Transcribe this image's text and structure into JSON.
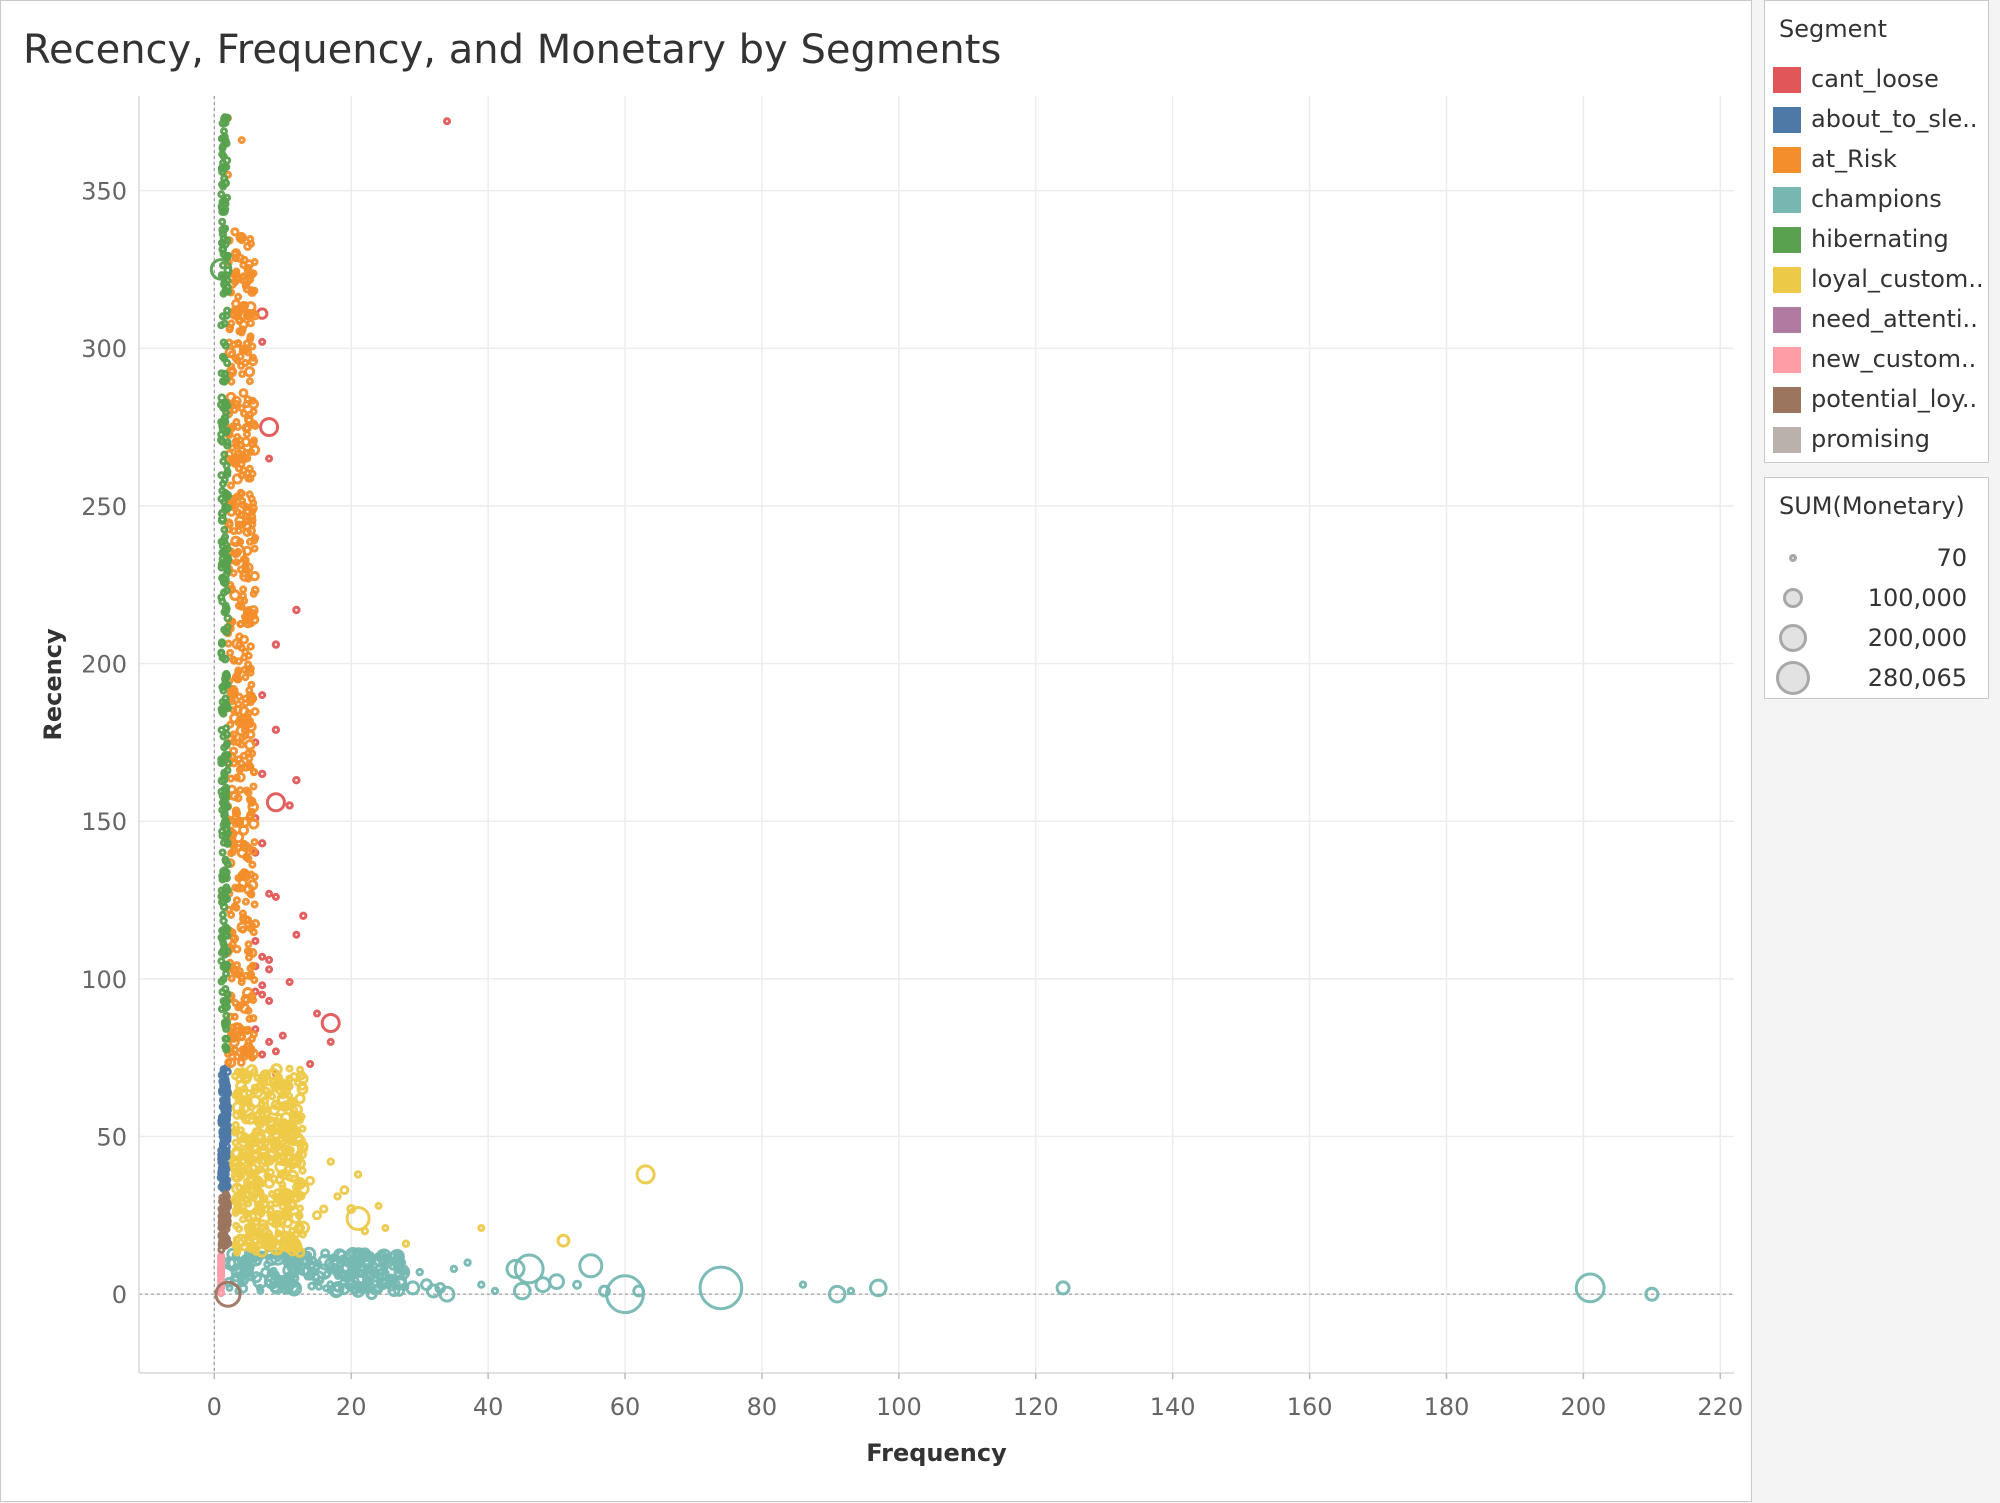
{
  "colors": {
    "cant_loose": "#e15759",
    "about_to_sleep": "#4e79a7",
    "at_Risk": "#f28e2b",
    "champions": "#76b7b2",
    "hibernating": "#59a14f",
    "loyal_customers": "#edc948",
    "need_attention": "#b07aa1",
    "new_customers": "#ff9da7",
    "potential_loyalists": "#9c755f",
    "promising": "#bab0ac"
  },
  "legend": {
    "segment_title": "Segment",
    "segments": [
      {
        "label": "cant_loose",
        "key": "cant_loose"
      },
      {
        "label": "about_to_sle..",
        "key": "about_to_sleep"
      },
      {
        "label": "at_Risk",
        "key": "at_Risk"
      },
      {
        "label": "champions",
        "key": "champions"
      },
      {
        "label": "hibernating",
        "key": "hibernating"
      },
      {
        "label": "loyal_custom..",
        "key": "loyal_customers"
      },
      {
        "label": "need_attenti..",
        "key": "need_attention"
      },
      {
        "label": "new_custom..",
        "key": "new_customers"
      },
      {
        "label": "potential_loy..",
        "key": "potential_loyalists"
      },
      {
        "label": "promising",
        "key": "promising"
      }
    ],
    "size_title": "SUM(Monetary)",
    "sizes": [
      {
        "label": "70",
        "value": 70
      },
      {
        "label": "100,000",
        "value": 100000
      },
      {
        "label": "200,000",
        "value": 200000
      },
      {
        "label": "280,065",
        "value": 280065
      }
    ]
  },
  "chart_data": {
    "type": "scatter",
    "title": "Recency, Frequency, and Monetary by Segments",
    "xlabel": "Frequency",
    "ylabel": "Recency",
    "xlim": [
      -11,
      222
    ],
    "ylim": [
      -25,
      380
    ],
    "x_ticks": [
      0,
      20,
      40,
      60,
      80,
      100,
      120,
      140,
      160,
      180,
      200,
      220
    ],
    "y_ticks": [
      0,
      50,
      100,
      150,
      200,
      250,
      300,
      350
    ],
    "x_tick_labels": [
      "0",
      "20",
      "40",
      "60",
      "80",
      "100",
      "120",
      "140",
      "160",
      "180",
      "200",
      "220"
    ],
    "y_tick_labels": [
      "0",
      "50",
      "100",
      "150",
      "200",
      "250",
      "300",
      "350"
    ],
    "grid": true,
    "legend_position": "right",
    "series": [
      {
        "key": "cant_loose",
        "points": [
          [
            34,
            372,
            2000
          ],
          [
            7,
            311,
            9000
          ],
          [
            7,
            302,
            2000
          ],
          [
            8,
            275,
            30000
          ],
          [
            8,
            265,
            2000
          ],
          [
            12,
            217,
            3000
          ],
          [
            9,
            206,
            3000
          ],
          [
            7,
            190,
            2000
          ],
          [
            9,
            179,
            3000
          ],
          [
            6,
            175,
            2000
          ],
          [
            7,
            165,
            3000
          ],
          [
            12,
            163,
            3000
          ],
          [
            9,
            156,
            30000
          ],
          [
            11,
            155,
            3000
          ],
          [
            6,
            151,
            2000
          ],
          [
            7,
            143,
            3000
          ],
          [
            6,
            140,
            2000
          ],
          [
            8,
            127,
            2000
          ],
          [
            9,
            126,
            2000
          ],
          [
            13,
            120,
            3000
          ],
          [
            12,
            114,
            2000
          ],
          [
            6,
            112,
            2000
          ],
          [
            7,
            107,
            2000
          ],
          [
            8,
            106,
            2000
          ],
          [
            6,
            104,
            2000
          ],
          [
            8,
            103,
            2000
          ],
          [
            11,
            99,
            2000
          ],
          [
            7,
            98,
            2000
          ],
          [
            6,
            96,
            2000
          ],
          [
            7,
            95,
            2000
          ],
          [
            8,
            93,
            2000
          ],
          [
            15,
            89,
            2000
          ],
          [
            17,
            86,
            30000
          ],
          [
            6,
            84,
            2000
          ],
          [
            10,
            82,
            2000
          ],
          [
            17,
            80,
            2000
          ],
          [
            8,
            80,
            2000
          ],
          [
            9,
            77,
            2000
          ],
          [
            7,
            76,
            2000
          ],
          [
            14,
            73,
            2000
          ],
          [
            9,
            70,
            2000
          ],
          [
            11,
            66,
            2000
          ]
        ]
      },
      {
        "key": "about_to_sleep",
        "jitter": {
          "count": 150,
          "xmin": 1,
          "xmax": 2,
          "ymin": 33,
          "ymax": 72,
          "mmin": 300,
          "mmax": 4000
        },
        "points": []
      },
      {
        "key": "at_Risk",
        "jitter": {
          "count": 520,
          "xmin": 2,
          "xmax": 6,
          "ymin": 73,
          "ymax": 338,
          "mmin": 300,
          "mmax": 8000
        },
        "points": [
          [
            2,
            373,
            2000
          ],
          [
            4,
            366,
            2000
          ],
          [
            2,
            355,
            2000
          ],
          [
            3,
            330,
            2000
          ],
          [
            3,
            312,
            2000
          ],
          [
            5,
            311,
            5000
          ],
          [
            4,
            305,
            2000
          ],
          [
            4,
            281,
            2000
          ],
          [
            2,
            265,
            2000
          ],
          [
            3,
            235,
            40000
          ],
          [
            4,
            218,
            2000
          ],
          [
            5,
            217,
            2000
          ],
          [
            4,
            205,
            2000
          ],
          [
            5,
            198,
            2000
          ],
          [
            4,
            181,
            2000
          ],
          [
            5,
            159,
            2000
          ],
          [
            5,
            138,
            2000
          ],
          [
            3,
            123,
            2000
          ],
          [
            5,
            111,
            2000
          ],
          [
            4,
            99,
            2000
          ],
          [
            3,
            88,
            2000
          ],
          [
            5,
            80,
            2000
          ]
        ]
      },
      {
        "key": "champions",
        "jitter": {
          "count": 240,
          "xmin": 2,
          "xmax": 28,
          "ymin": 1,
          "ymax": 13,
          "mmin": 500,
          "mmax": 20000
        },
        "points": [
          [
            74,
            2,
            180000
          ],
          [
            60,
            0,
            140000
          ],
          [
            46,
            8,
            80000
          ],
          [
            201,
            2,
            80000
          ],
          [
            55,
            9,
            50000
          ],
          [
            44,
            8,
            30000
          ],
          [
            97,
            2,
            25000
          ],
          [
            91,
            0,
            25000
          ],
          [
            124,
            2,
            15000
          ],
          [
            210,
            0,
            15000
          ],
          [
            62,
            1,
            10000
          ],
          [
            86,
            3,
            3000
          ],
          [
            93,
            1,
            3000
          ],
          [
            48,
            3,
            20000
          ],
          [
            50,
            4,
            20000
          ],
          [
            45,
            1,
            25000
          ],
          [
            57,
            1,
            10000
          ],
          [
            53,
            3,
            5000
          ],
          [
            41,
            1,
            3000
          ],
          [
            39,
            3,
            3000
          ],
          [
            37,
            10,
            3000
          ],
          [
            35,
            8,
            3000
          ],
          [
            33,
            2,
            8000
          ],
          [
            34,
            0,
            20000
          ],
          [
            32,
            1,
            15000
          ],
          [
            31,
            3,
            10000
          ],
          [
            30,
            7,
            3000
          ],
          [
            29,
            2,
            15000
          ],
          [
            27,
            1,
            8000
          ],
          [
            26,
            4,
            5000
          ],
          [
            25,
            9,
            3000
          ],
          [
            24,
            2,
            5000
          ],
          [
            23,
            0,
            8000
          ],
          [
            22,
            7,
            3000
          ],
          [
            21,
            1,
            12000
          ],
          [
            20,
            3,
            8000
          ],
          [
            19,
            6,
            5000
          ],
          [
            18,
            2,
            4000
          ],
          [
            17,
            9,
            3000
          ]
        ]
      },
      {
        "key": "hibernating",
        "jitter": {
          "count": 340,
          "xmin": 1,
          "xmax": 2,
          "ymin": 77,
          "ymax": 374,
          "mmin": 300,
          "mmax": 4000
        },
        "points": [
          [
            1,
            325,
            40000
          ]
        ]
      },
      {
        "key": "loyal_customers",
        "jitter": {
          "count": 450,
          "xmin": 3,
          "xmax": 13,
          "ymin": 13,
          "ymax": 72,
          "mmin": 500,
          "mmax": 12000
        },
        "points": [
          [
            63,
            38,
            30000
          ],
          [
            21,
            24,
            50000
          ],
          [
            51,
            17,
            12000
          ],
          [
            39,
            21,
            1500
          ],
          [
            28,
            16,
            3000
          ],
          [
            25,
            21,
            2000
          ],
          [
            24,
            28,
            2000
          ],
          [
            22,
            20,
            3000
          ],
          [
            21,
            38,
            3000
          ],
          [
            20,
            27,
            5000
          ],
          [
            19,
            33,
            5000
          ],
          [
            18,
            31,
            3000
          ],
          [
            17,
            42,
            3000
          ],
          [
            16,
            27,
            4000
          ],
          [
            15,
            25,
            5000
          ],
          [
            14,
            36,
            5000
          ],
          [
            13,
            47,
            6000
          ],
          [
            12,
            42,
            8000
          ],
          [
            11,
            66,
            2000
          ],
          [
            10,
            52,
            8000
          ],
          [
            9,
            60,
            6000
          ]
        ]
      },
      {
        "key": "need_attention",
        "points": []
      },
      {
        "key": "new_customers",
        "jitter": {
          "count": 30,
          "xmin": 1,
          "xmax": 1,
          "ymin": 0,
          "ymax": 13,
          "mmin": 300,
          "mmax": 3000
        },
        "points": []
      },
      {
        "key": "potential_loyalists",
        "jitter": {
          "count": 60,
          "xmin": 1,
          "xmax": 2,
          "ymin": 14,
          "ymax": 32,
          "mmin": 300,
          "mmax": 4000
        },
        "points": [
          [
            2,
            0,
            60000
          ]
        ]
      },
      {
        "key": "promising",
        "points": []
      }
    ]
  }
}
